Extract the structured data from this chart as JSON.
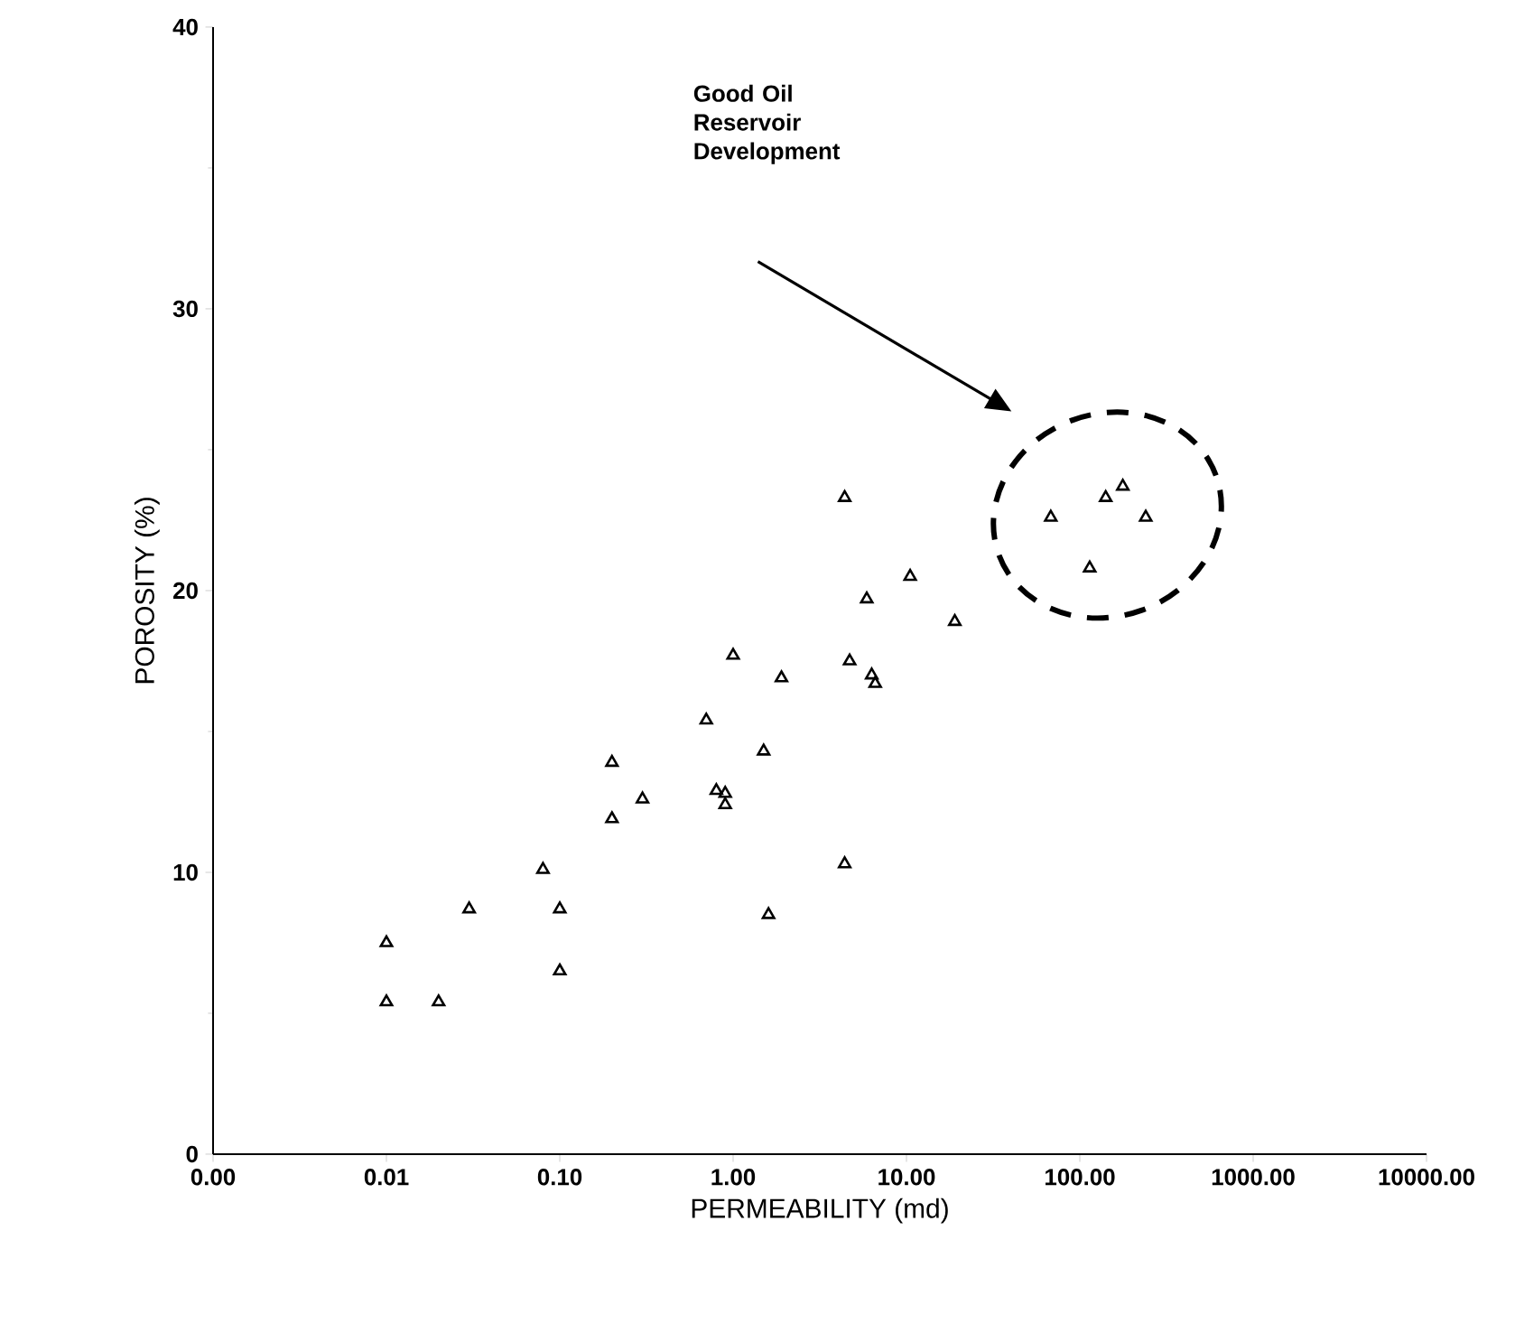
{
  "chart_data": {
    "type": "scatter",
    "xlabel": "PERMEABILITY (md)",
    "ylabel": "POROSITY (%)",
    "log": "x",
    "marker": "triangle",
    "grid": false,
    "xlim": [
      0.001,
      10000
    ],
    "ylim": [
      0,
      40
    ],
    "xticks": [
      {
        "value": 0.001,
        "label": "0.00"
      },
      {
        "value": 0.01,
        "label": "0.01"
      },
      {
        "value": 0.1,
        "label": "0.10"
      },
      {
        "value": 1,
        "label": "1.00"
      },
      {
        "value": 10,
        "label": "10.00"
      },
      {
        "value": 100,
        "label": "100.00"
      },
      {
        "value": 1000,
        "label": "1000.00"
      },
      {
        "value": 10000,
        "label": "10000.00"
      }
    ],
    "yticks": [
      0,
      10,
      20,
      30,
      40
    ],
    "annotations": [
      "Good Oil Reservoir Development"
    ],
    "series": [
      {
        "color": "#000000",
        "x": [
          0.01,
          0.01,
          0.02,
          0.03,
          0.08,
          0.1,
          0.1,
          0.2,
          0.2,
          0.3,
          0.7,
          0.8,
          0.9,
          0.9,
          1.5,
          1.6,
          4.4,
          4.4,
          10.5,
          5.9,
          19,
          1.0,
          1.9,
          4.7,
          6.3,
          6.6,
          68,
          141,
          177,
          240,
          114
        ],
        "values": [
          7.5,
          5.4,
          5.4,
          8.7,
          10.1,
          8.7,
          6.5,
          13.9,
          11.9,
          12.6,
          15.4,
          12.9,
          12.8,
          12.4,
          14.3,
          8.5,
          10.3,
          23.3,
          20.5,
          19.7,
          18.9,
          17.7,
          16.9,
          17.5,
          17.0,
          16.7,
          22.6,
          23.3,
          23.7,
          22.6,
          20.8
        ]
      }
    ]
  }
}
